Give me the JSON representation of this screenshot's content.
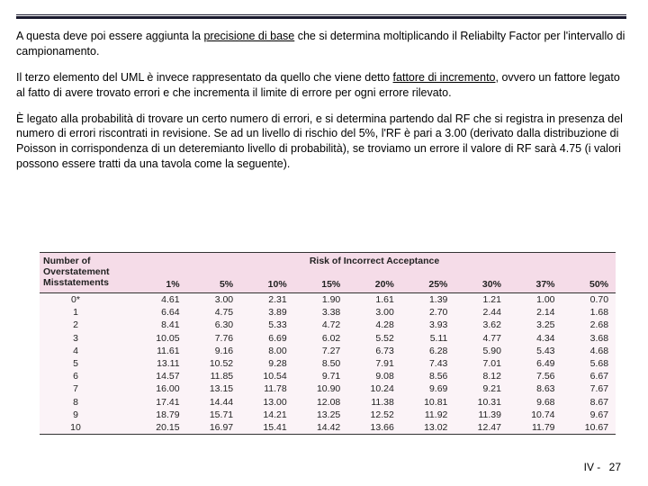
{
  "text": {
    "p1a": "A questa deve poi essere aggiunta la ",
    "p1u": "precisione di base",
    "p1b": " che si determina moltiplicando il Reliabilty Factor per l'intervallo di campionamento.",
    "p2a": "Il terzo elemento del UML è invece rappresentato da quello che viene detto  ",
    "p2u": "fattore di incremento",
    "p2b": ", ovvero un fattore legato al fatto di avere trovato errori e che incrementa il limite di errore per ogni errore rilevato.",
    "p3": "È legato alla probabilità di trovare un certo numero di errori, e si determina partendo dal RF che si registra in presenza del numero di errori riscontrati in revisione. Se ad un livello di rischio del 5%, l'RF è pari a 3.00 (derivato dalla distribuzione di Poisson in corrispondenza di un deteremianto livello di probabilità), se troviamo un errore il valore di RF sarà 4.75 (i valori possono essere tratti da una tavola come la seguente)."
  },
  "table": {
    "header_left_l1": "Number of",
    "header_left_l2": "Overstatement",
    "header_left_l3": "Misstatements",
    "header_right": "Risk of Incorrect Acceptance",
    "cols": [
      "1%",
      "5%",
      "10%",
      "15%",
      "20%",
      "25%",
      "30%",
      "37%",
      "50%"
    ],
    "rows": [
      {
        "label": "0*",
        "vals": [
          "4.61",
          "3.00",
          "2.31",
          "1.90",
          "1.61",
          "1.39",
          "1.21",
          "1.00",
          "0.70"
        ]
      },
      {
        "label": "1",
        "vals": [
          "6.64",
          "4.75",
          "3.89",
          "3.38",
          "3.00",
          "2.70",
          "2.44",
          "2.14",
          "1.68"
        ]
      },
      {
        "label": "2",
        "vals": [
          "8.41",
          "6.30",
          "5.33",
          "4.72",
          "4.28",
          "3.93",
          "3.62",
          "3.25",
          "2.68"
        ]
      },
      {
        "label": "3",
        "vals": [
          "10.05",
          "7.76",
          "6.69",
          "6.02",
          "5.52",
          "5.11",
          "4.77",
          "4.34",
          "3.68"
        ]
      },
      {
        "label": "4",
        "vals": [
          "11.61",
          "9.16",
          "8.00",
          "7.27",
          "6.73",
          "6.28",
          "5.90",
          "5.43",
          "4.68"
        ]
      },
      {
        "label": "5",
        "vals": [
          "13.11",
          "10.52",
          "9.28",
          "8.50",
          "7.91",
          "7.43",
          "7.01",
          "6.49",
          "5.68"
        ]
      },
      {
        "label": "6",
        "vals": [
          "14.57",
          "11.85",
          "10.54",
          "9.71",
          "9.08",
          "8.56",
          "8.12",
          "7.56",
          "6.67"
        ]
      },
      {
        "label": "7",
        "vals": [
          "16.00",
          "13.15",
          "11.78",
          "10.90",
          "10.24",
          "9.69",
          "9.21",
          "8.63",
          "7.67"
        ]
      },
      {
        "label": "8",
        "vals": [
          "17.41",
          "14.44",
          "13.00",
          "12.08",
          "11.38",
          "10.81",
          "10.31",
          "9.68",
          "8.67"
        ]
      },
      {
        "label": "9",
        "vals": [
          "18.79",
          "15.71",
          "14.21",
          "13.25",
          "12.52",
          "11.92",
          "11.39",
          "10.74",
          "9.67"
        ]
      },
      {
        "label": "10",
        "vals": [
          "20.15",
          "16.97",
          "15.41",
          "14.42",
          "13.66",
          "13.02",
          "12.47",
          "11.79",
          "10.67"
        ]
      }
    ]
  },
  "footer": {
    "prefix": "IV -",
    "page": "27"
  },
  "colors": {
    "rule": "#1a1a2e",
    "thead_bg": "#f5dce8",
    "tbody_bg": "#fbf3f7"
  }
}
